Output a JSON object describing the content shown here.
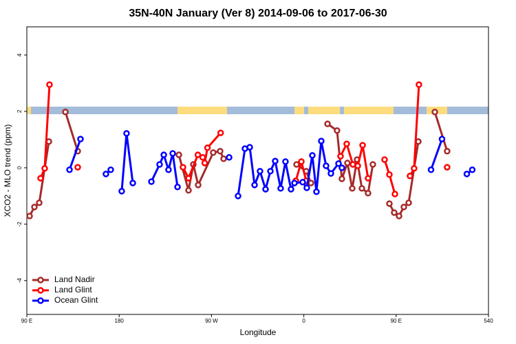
{
  "chart_data": {
    "type": "line",
    "title": "35N-40N January (Ver 8)   2014-09-06 to 2017-06-30",
    "x_label": "Longitude",
    "y_label": "XCO2 - MLO trend (ppm)",
    "xlim": [
      90,
      540
    ],
    "ylim": [
      -5.2,
      5
    ],
    "xticks": [
      {
        "value": 90,
        "label": "90 E"
      },
      180,
      {
        "value": 270,
        "label": "90 W"
      },
      {
        "value": 360,
        "label": "0"
      },
      {
        "value": 450,
        "label": "90 E"
      },
      540
    ],
    "yticks": [
      -4,
      -2,
      0,
      2,
      4
    ],
    "legend": "bottom-left",
    "series": [
      {
        "name": "Land Nadir",
        "color": "#a52a2a",
        "x": [
          92.7,
          97.4,
          102.1,
          111.5,
          null,
          127.6,
          139.6,
          null,
          238.2,
          247.6,
          252.3,
          257.0,
          271.7,
          278.4,
          281.8,
          null,
          352.9,
          362.3,
          367.0,
          null,
          383.1,
          392.4,
          397.1,
          402.5,
          407.2,
          411.9,
          416.6,
          422.6,
          427.3,
          null,
          443.4,
          448.1,
          452.8,
          457.5,
          462.2,
          471.6,
          null,
          487.7,
          499.7
        ],
        "values": [
          -1.71,
          -1.39,
          -1.24,
          0.93,
          null,
          1.98,
          0.59,
          null,
          0.46,
          -0.8,
          0.12,
          -0.61,
          0.54,
          0.59,
          0.32,
          null,
          0.12,
          -0.12,
          -0.54,
          null,
          1.56,
          1.32,
          -0.39,
          0.17,
          -0.73,
          0.29,
          -0.73,
          -0.9,
          0.12,
          null,
          -1.27,
          -1.59,
          -1.71,
          -1.39,
          -1.24,
          0.93,
          null,
          1.98,
          0.59
        ]
      },
      {
        "name": "Land Glint",
        "color": "#ff0000",
        "x": [
          103.4,
          107.4,
          112.1,
          null,
          139.6,
          null,
          242.2,
          247.6,
          256.7,
          261.4,
          263.4,
          266.1,
          278.9,
          null,
          352.2,
          357.6,
          362.3,
          null,
          395.8,
          401.8,
          407.8,
          412.6,
          417.3,
          422.6,
          null,
          438.7,
          443.4,
          448.8,
          null,
          463.5,
          467.5,
          472.2,
          null,
          499.7
        ],
        "values": [
          -0.37,
          -0.02,
          2.95,
          null,
          0.02,
          null,
          0.02,
          -0.37,
          0.46,
          0.37,
          0.17,
          0.71,
          1.24,
          null,
          -0.46,
          0.22,
          -0.46,
          null,
          0.41,
          0.85,
          0.12,
          0.07,
          0.8,
          -0.37,
          null,
          0.29,
          -0.24,
          -0.93,
          null,
          -0.29,
          -0.02,
          2.95,
          null,
          0.02
        ]
      },
      {
        "name": "Ocean Glint",
        "color": "#0000ff",
        "x": [
          131.6,
          142.3,
          null,
          167.1,
          171.8,
          null,
          182.5,
          187.2,
          193.3,
          null,
          211.4,
          219.4,
          223.5,
          228.1,
          232.2,
          236.9,
          null,
          287.2,
          null,
          295.9,
          302.6,
          307.3,
          312.0,
          317.3,
          322.7,
          327.4,
          332.1,
          337.4,
          342.1,
          347.5,
          350.9,
          358.9,
          362.9,
          368.3,
          372.3,
          377.0,
          381.7,
          386.4,
          393.8,
          397.1,
          null,
          484.0,
          494.7,
          null,
          518.9,
          524.2
        ],
        "values": [
          -0.07,
          1.02,
          null,
          -0.22,
          -0.07,
          null,
          -0.83,
          1.22,
          -0.54,
          null,
          -0.49,
          0.12,
          0.46,
          -0.07,
          0.51,
          -0.68,
          null,
          0.37,
          null,
          -1.0,
          0.68,
          0.73,
          -0.61,
          -0.12,
          -0.76,
          -0.12,
          0.24,
          -0.73,
          0.22,
          -0.76,
          -0.54,
          -0.51,
          -0.71,
          0.44,
          -0.85,
          0.95,
          0.07,
          -0.2,
          0.15,
          0,
          null,
          -0.07,
          1.02,
          null,
          -0.22,
          -0.07
        ]
      }
    ]
  }
}
